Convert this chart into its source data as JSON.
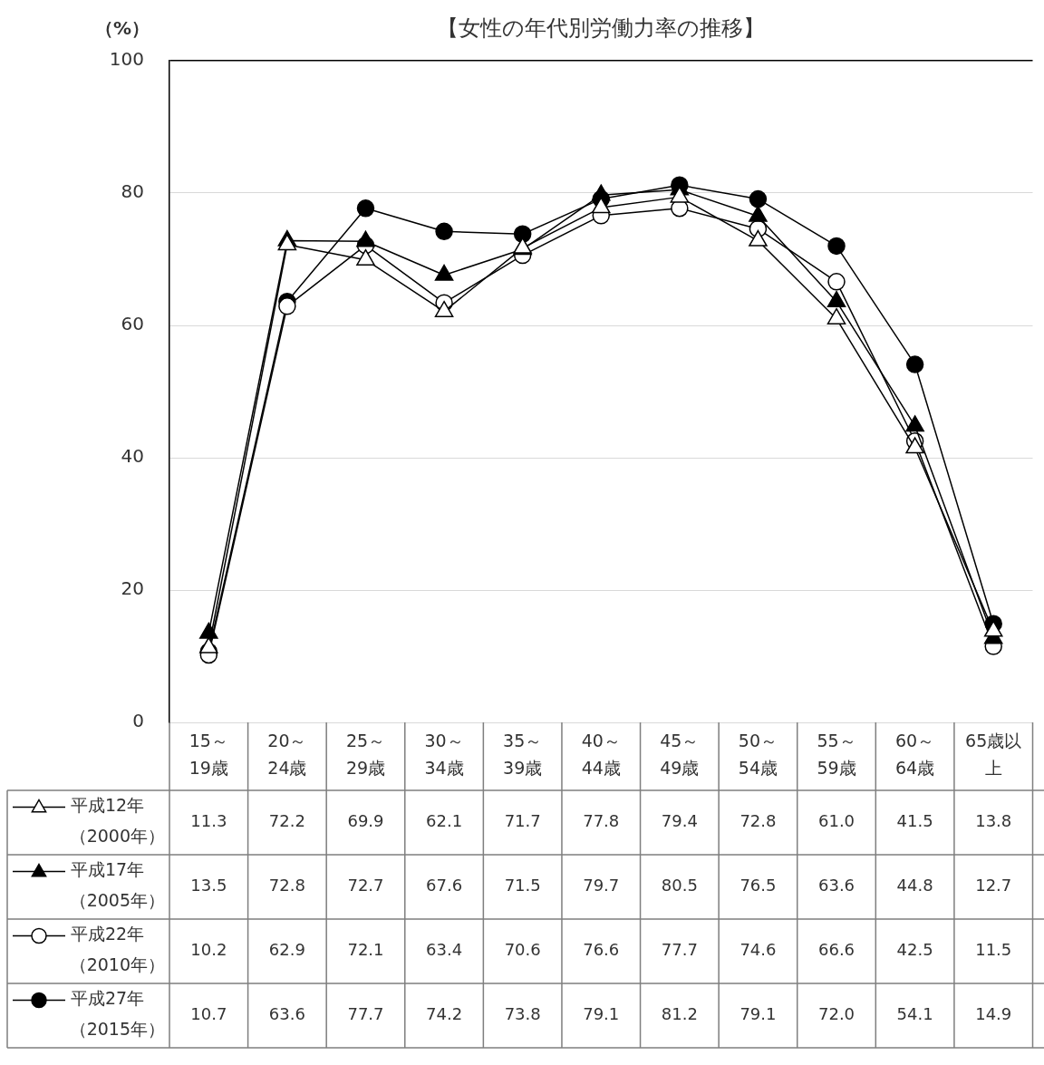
{
  "chart_data": {
    "type": "line",
    "title": "【女性の年代別労働力率の推移】",
    "ylabel": "（%）",
    "categories": [
      "15～19歳",
      "20～24歳",
      "25～29歳",
      "30～34歳",
      "35～39歳",
      "40～44歳",
      "45～49歳",
      "50～54歳",
      "55～59歳",
      "60～64歳",
      "65歳以上"
    ],
    "series": [
      {
        "name": "平成12年（2000年）",
        "color": "#000000",
        "marker": "triangle",
        "colors": [
          "#ffffff",
          "#ffffff",
          "#ffffff",
          "#ffffff",
          "#ffffff",
          "#ffffff",
          "#ffffff",
          "#ffffff",
          "#ffffff",
          "#ffffff",
          "#ffffff"
        ],
        "values": [
          11.3,
          72.2,
          69.9,
          62.1,
          71.7,
          77.8,
          79.4,
          72.8,
          61.0,
          41.5,
          13.8
        ],
        "value_labels": [
          "11.3",
          "72.2",
          "69.9",
          "62.1",
          "71.7",
          "77.8",
          "79.4",
          "72.8",
          "61.0",
          "41.5",
          "13.8"
        ]
      },
      {
        "name": "平成17年（2005年）",
        "color": "#000000",
        "marker": "triangle",
        "colors": [
          "#000000",
          "#000000",
          "#000000",
          "#000000",
          "#000000",
          "#000000",
          "#000000",
          "#000000",
          "#000000",
          "#000000",
          "#000000"
        ],
        "values": [
          13.5,
          72.8,
          72.7,
          67.6,
          71.5,
          79.7,
          80.5,
          76.5,
          63.6,
          44.8,
          12.7
        ],
        "value_labels": [
          "13.5",
          "72.8",
          "72.7",
          "67.6",
          "71.5",
          "79.7",
          "80.5",
          "76.5",
          "63.6",
          "44.8",
          "12.7"
        ]
      },
      {
        "name": "平成22年（2010年）",
        "color": "#000000",
        "marker": "circle",
        "colors": [
          "#ffffff",
          "#ffffff",
          "#ffffff",
          "#ffffff",
          "#ffffff",
          "#ffffff",
          "#ffffff",
          "#ffffff",
          "#ffffff",
          "#ffffff",
          "#ffffff"
        ],
        "values": [
          10.2,
          62.9,
          72.1,
          63.4,
          70.6,
          76.6,
          77.7,
          74.6,
          66.6,
          42.5,
          11.5
        ],
        "value_labels": [
          "10.2",
          "62.9",
          "72.1",
          "63.4",
          "70.6",
          "76.6",
          "77.7",
          "74.6",
          "66.6",
          "42.5",
          "11.5"
        ]
      },
      {
        "name": "平成27年（2015年）",
        "color": "#000000",
        "marker": "circle",
        "colors": [
          "#000000",
          "#000000",
          "#000000",
          "#000000",
          "#000000",
          "#000000",
          "#000000",
          "#000000",
          "#000000",
          "#000000",
          "#000000"
        ],
        "values": [
          10.7,
          63.6,
          77.7,
          74.2,
          73.8,
          79.1,
          81.2,
          79.1,
          72.0,
          54.1,
          14.9
        ],
        "value_labels": [
          "10.7",
          "63.6",
          "77.7",
          "74.2",
          "73.8",
          "79.1",
          "81.2",
          "79.1",
          "72.0",
          "54.1",
          "14.9"
        ]
      }
    ],
    "ylim": [
      0,
      100
    ],
    "yticks": [
      0,
      20,
      40,
      60,
      80,
      100
    ],
    "grid": "y",
    "legend": "bottom left",
    "line_style": "solid"
  }
}
